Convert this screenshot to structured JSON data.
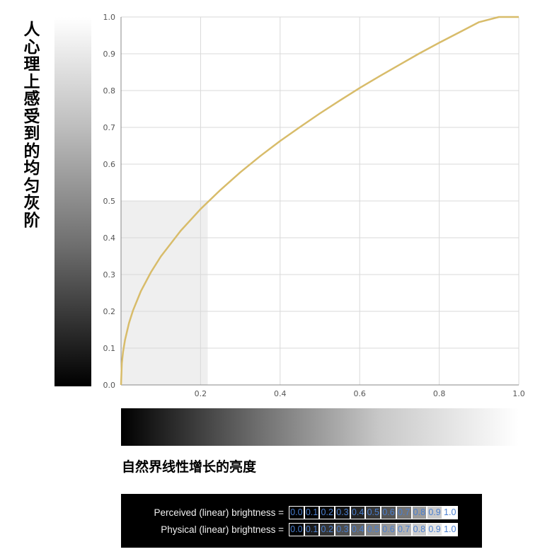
{
  "y_side_label": "人心理上感受到的均匀灰阶",
  "x_side_label": "自然界线性增长的亮度",
  "comparison": {
    "perceived_label": "Perceived (linear) brightness =",
    "physical_label": "Physical (linear) brightness =",
    "values": [
      "0.0",
      "0.1",
      "0.2",
      "0.3",
      "0.4",
      "0.5",
      "0.6",
      "0.7",
      "0.8",
      "0.9",
      "1.0"
    ]
  },
  "chart_data": {
    "type": "line",
    "title": "",
    "xlabel": "",
    "ylabel": "",
    "xlim": [
      0,
      1
    ],
    "ylim": [
      0,
      1
    ],
    "x_ticks": [
      "0.2",
      "0.4",
      "0.6",
      "0.8",
      "1.0"
    ],
    "y_ticks": [
      "0.0",
      "0.1",
      "0.2",
      "0.3",
      "0.4",
      "0.5",
      "0.6",
      "0.7",
      "0.8",
      "0.9",
      "1.0"
    ],
    "grid": true,
    "series": [
      {
        "color": "#d8bc6a",
        "x": [
          0,
          0.002,
          0.005,
          0.01,
          0.02,
          0.03,
          0.05,
          0.075,
          0.1,
          0.15,
          0.2,
          0.25,
          0.3,
          0.35,
          0.4,
          0.45,
          0.5,
          0.55,
          0.6,
          0.65,
          0.7,
          0.75,
          0.8,
          0.85,
          0.9,
          0.95,
          1.0
        ],
        "y": [
          0,
          0.059,
          0.089,
          0.122,
          0.168,
          0.202,
          0.255,
          0.306,
          0.349,
          0.419,
          0.478,
          0.53,
          0.578,
          0.622,
          0.663,
          0.701,
          0.738,
          0.773,
          0.807,
          0.839,
          0.87,
          0.901,
          0.93,
          0.958,
          0.986,
          1.0,
          1.0
        ]
      }
    ],
    "highlight": {
      "x": [
        0,
        0.218
      ],
      "y": [
        0,
        0.5
      ],
      "color": "#efefef"
    }
  }
}
